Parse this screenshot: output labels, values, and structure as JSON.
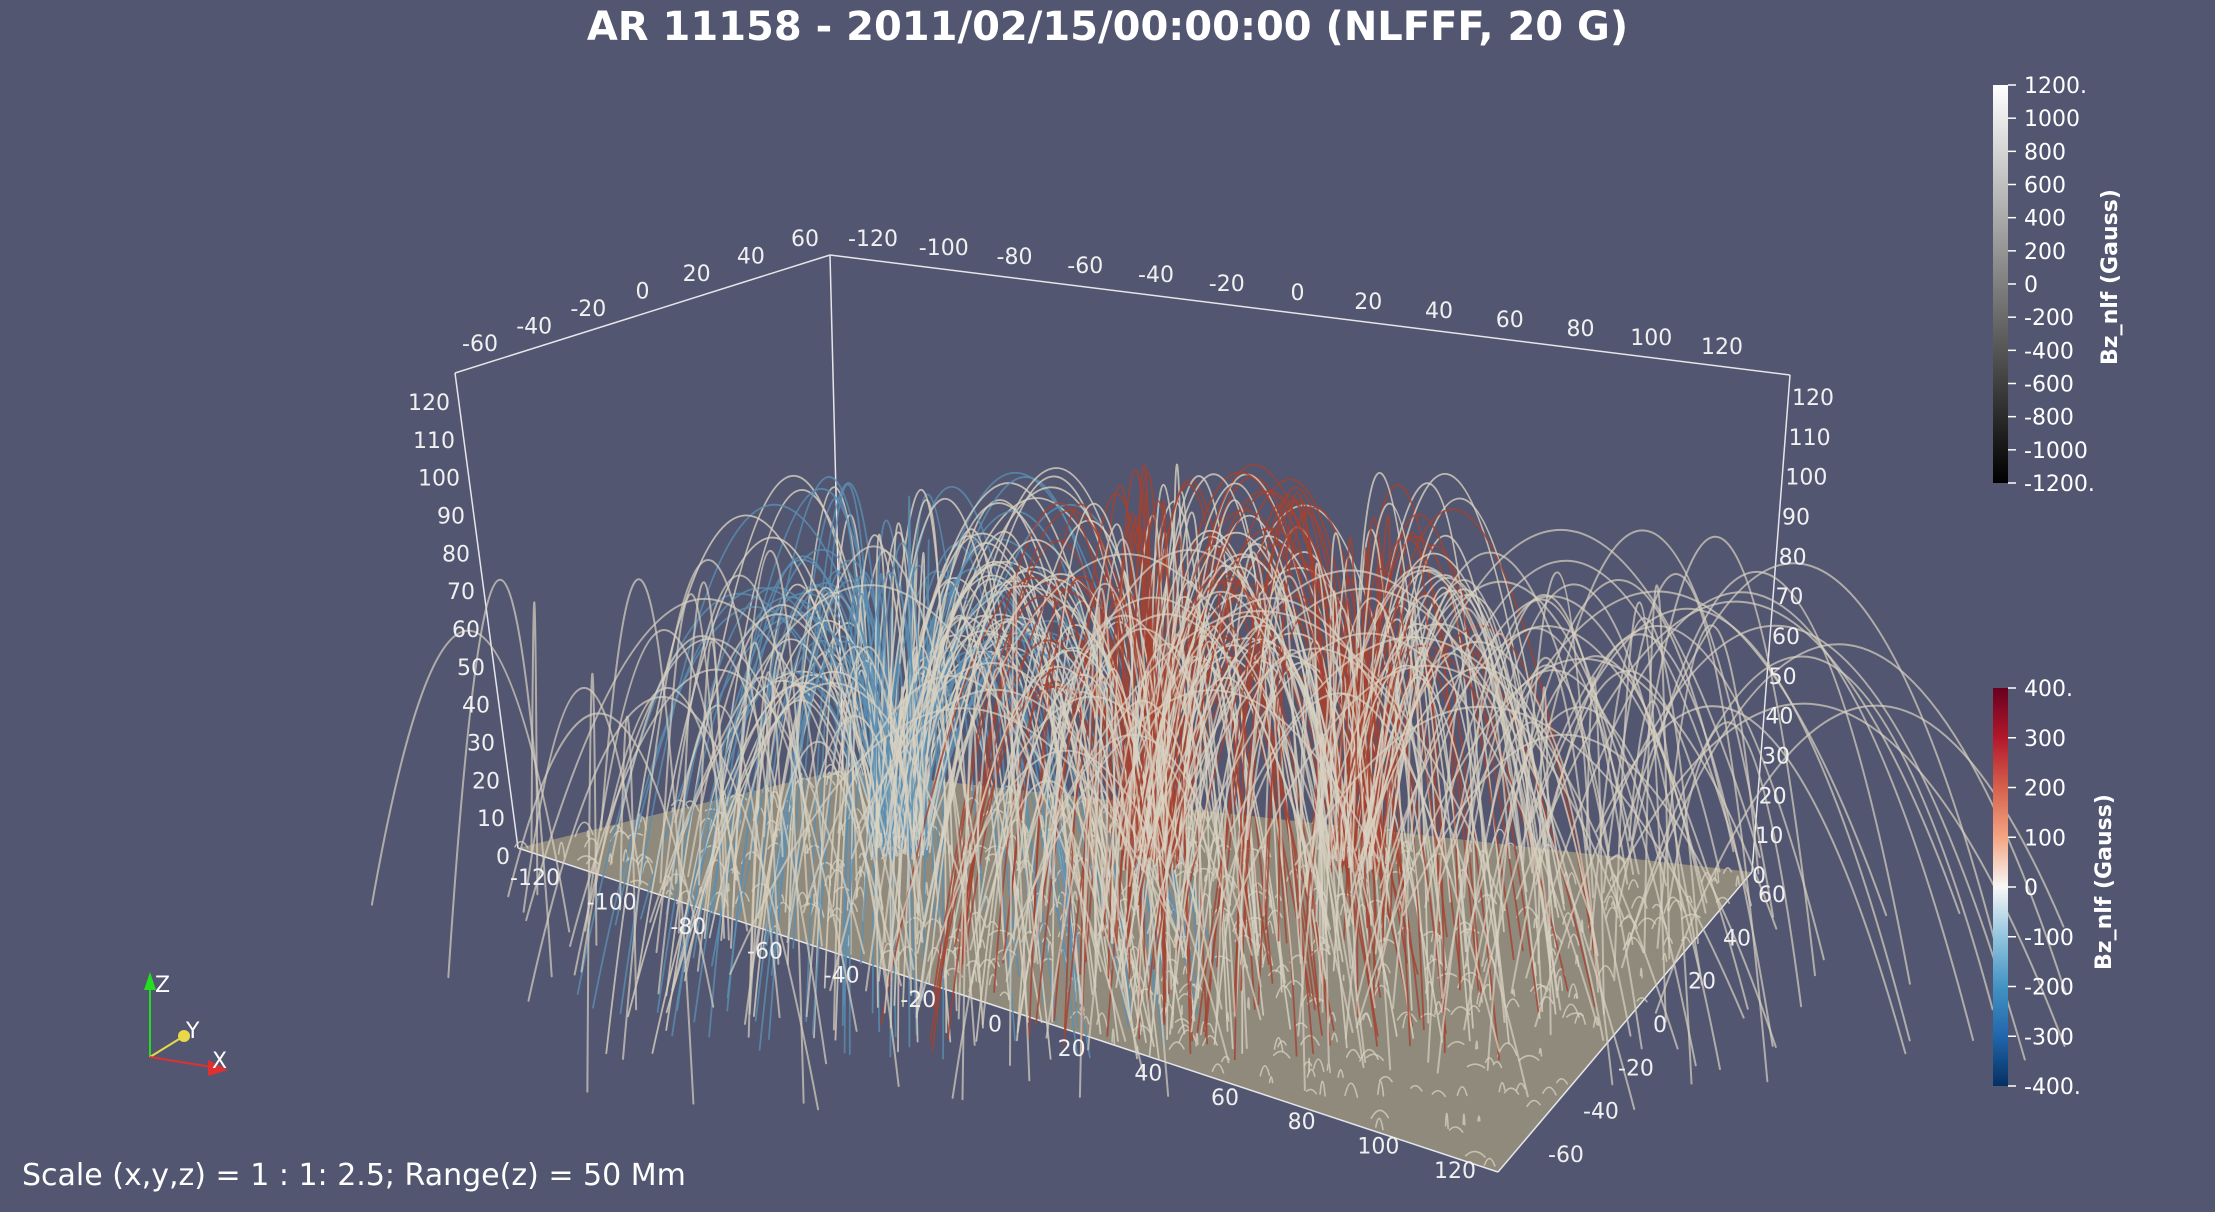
{
  "title": "AR 11158 - 2011/02/15/00:00:00 (NLFFF, 20 G)",
  "footer_text": "Scale (x,y,z) = 1 : 1: 2.5; Range(z) = 50 Mm",
  "axes": {
    "x_ticks": [
      "-120",
      "-100",
      "-80",
      "-60",
      "-40",
      "-20",
      "0",
      "20",
      "40",
      "60",
      "80",
      "100",
      "120"
    ],
    "y_ticks": [
      "-60",
      "-40",
      "-20",
      "0",
      "20",
      "40",
      "60"
    ],
    "z_ticks": [
      "0",
      "10",
      "20",
      "30",
      "40",
      "50",
      "60",
      "70",
      "80",
      "90",
      "100",
      "110",
      "120"
    ]
  },
  "orientation": {
    "z": "Z",
    "y": "Y",
    "x": "X"
  },
  "colorbar_bottom": {
    "title": "Bz_nlf (Gauss)",
    "ticks": [
      "400.",
      "300",
      "200",
      "100",
      "0",
      "-100",
      "-200",
      "-300",
      "-400."
    ],
    "colors": [
      "#67001f",
      "#b2182b",
      "#d6604d",
      "#f4a582",
      "#f7f7f7",
      "#92c5de",
      "#4393c3",
      "#2166ac",
      "#053061"
    ]
  },
  "colorbar_top": {
    "title": "Bz_nlf (Gauss)",
    "ticks": [
      "1200.",
      "1000",
      "800",
      "600",
      "400",
      "200",
      "0",
      "-200",
      "-400",
      "-600",
      "-800",
      "-1000",
      "-1200."
    ],
    "colors": [
      "#ffffff",
      "#000000"
    ]
  },
  "colors": {
    "background": "#525670",
    "floor": "#8f8a7c",
    "field_neutral": "#d8d2c2",
    "field_blue": "#5a8fb3",
    "field_red": "#a5412f"
  }
}
